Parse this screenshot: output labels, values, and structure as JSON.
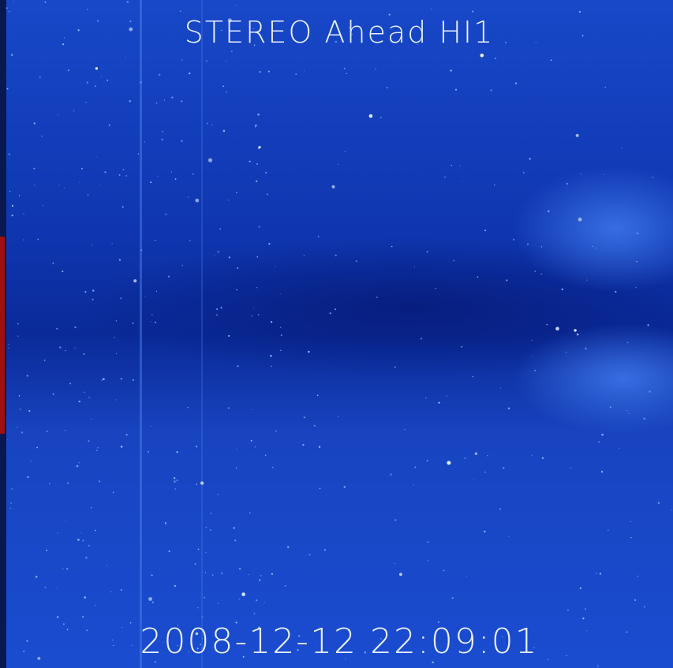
{
  "header": {
    "title": "STEREO Ahead HI1"
  },
  "footer": {
    "timestamp": "2008-12-12 22:09:01"
  }
}
